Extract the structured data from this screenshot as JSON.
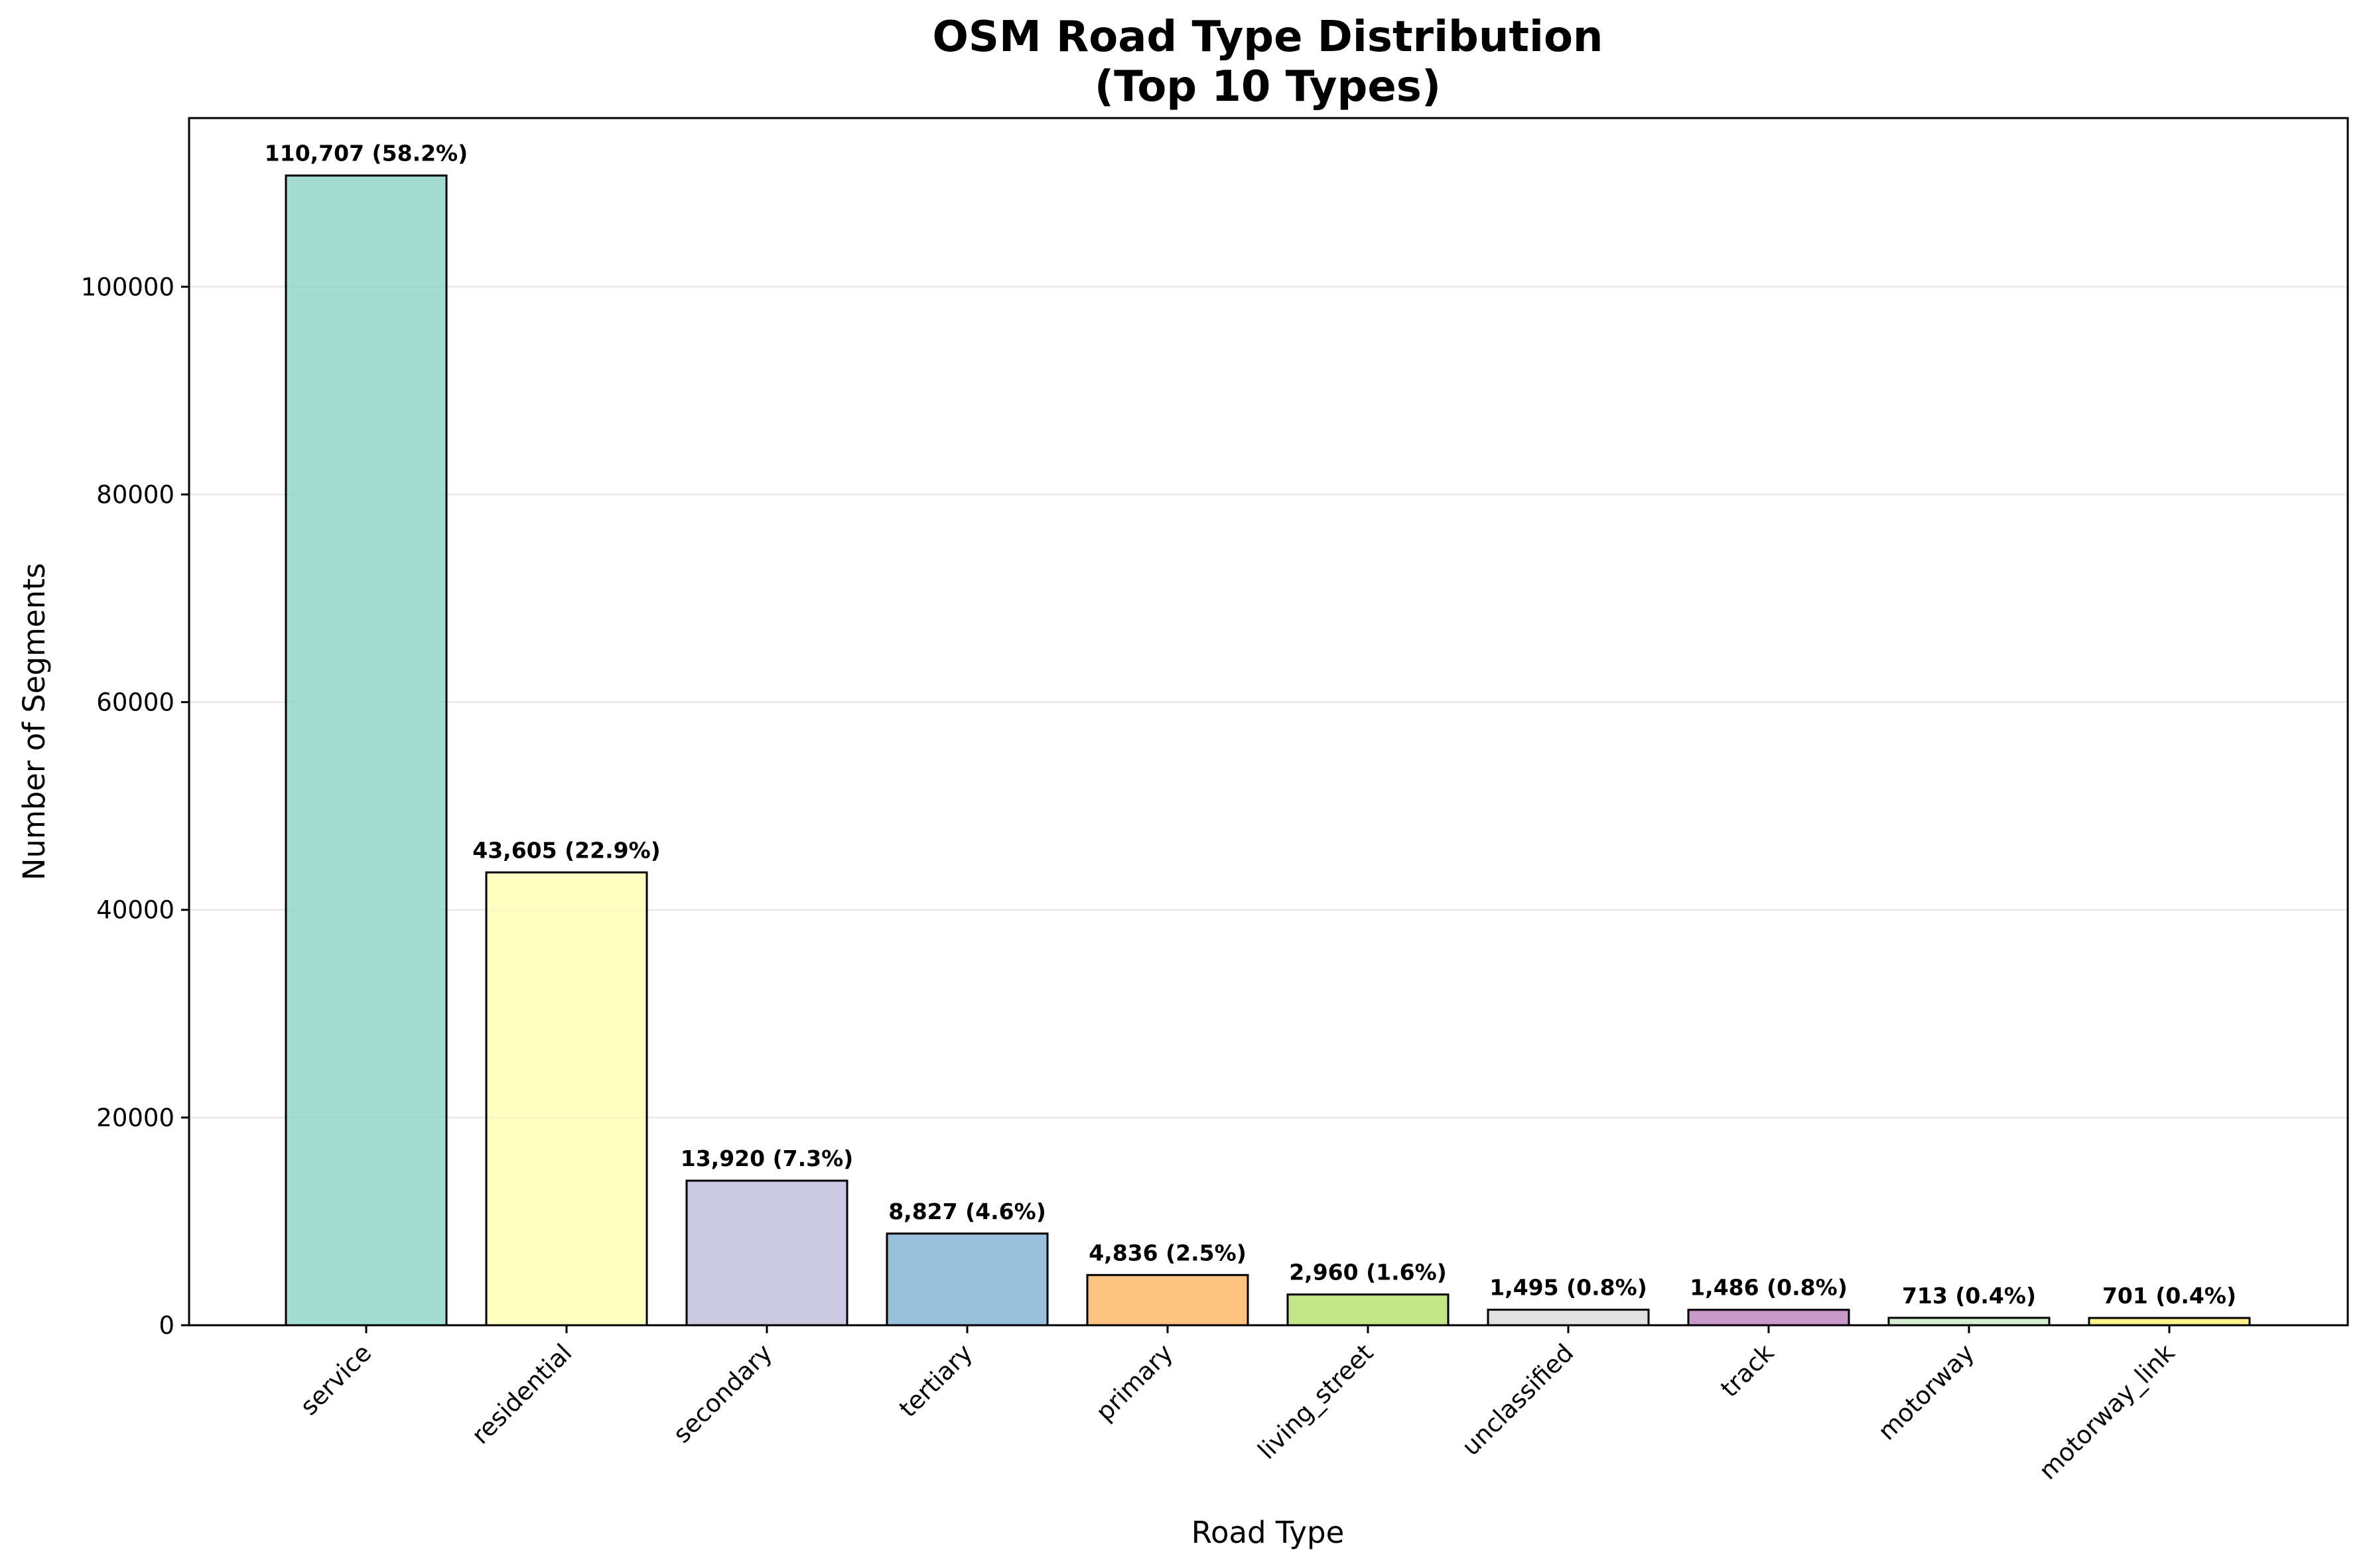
{
  "chart_data": {
    "type": "bar",
    "title": [
      "OSM Road Type Distribution",
      "(Top 10 Types)"
    ],
    "xlabel": "Road Type",
    "ylabel": "Number of Segments",
    "categories": [
      "service",
      "residential",
      "secondary",
      "tertiary",
      "primary",
      "living_street",
      "unclassified",
      "track",
      "motorway",
      "motorway_link"
    ],
    "values": [
      110707,
      43605,
      13920,
      8827,
      4836,
      2960,
      1495,
      1486,
      713,
      701
    ],
    "data_labels": [
      "110,707 (58.2%)",
      "43,605 (22.9%)",
      "13,920 (7.3%)",
      "8,827 (4.6%)",
      "4,836 (2.5%)",
      "2,960 (1.6%)",
      "1,495 (0.8%)",
      "1,486 (0.8%)",
      "713 (0.4%)",
      "701 (0.4%)"
    ],
    "colors": [
      "#8dd3c7",
      "#ffffb3",
      "#bebada",
      "#80b1d3",
      "#fdb462",
      "#b3de69",
      "#d9d9d9",
      "#bc80bd",
      "#ccebc5",
      "#ffed6f"
    ],
    "ylim": [
      0,
      116242
    ],
    "yticks": [
      0,
      20000,
      40000,
      60000,
      80000,
      100000
    ],
    "ytick_labels": [
      "0",
      "20000",
      "40000",
      "60000",
      "80000",
      "100000"
    ],
    "grid": "y-axis only",
    "legend": "none"
  }
}
